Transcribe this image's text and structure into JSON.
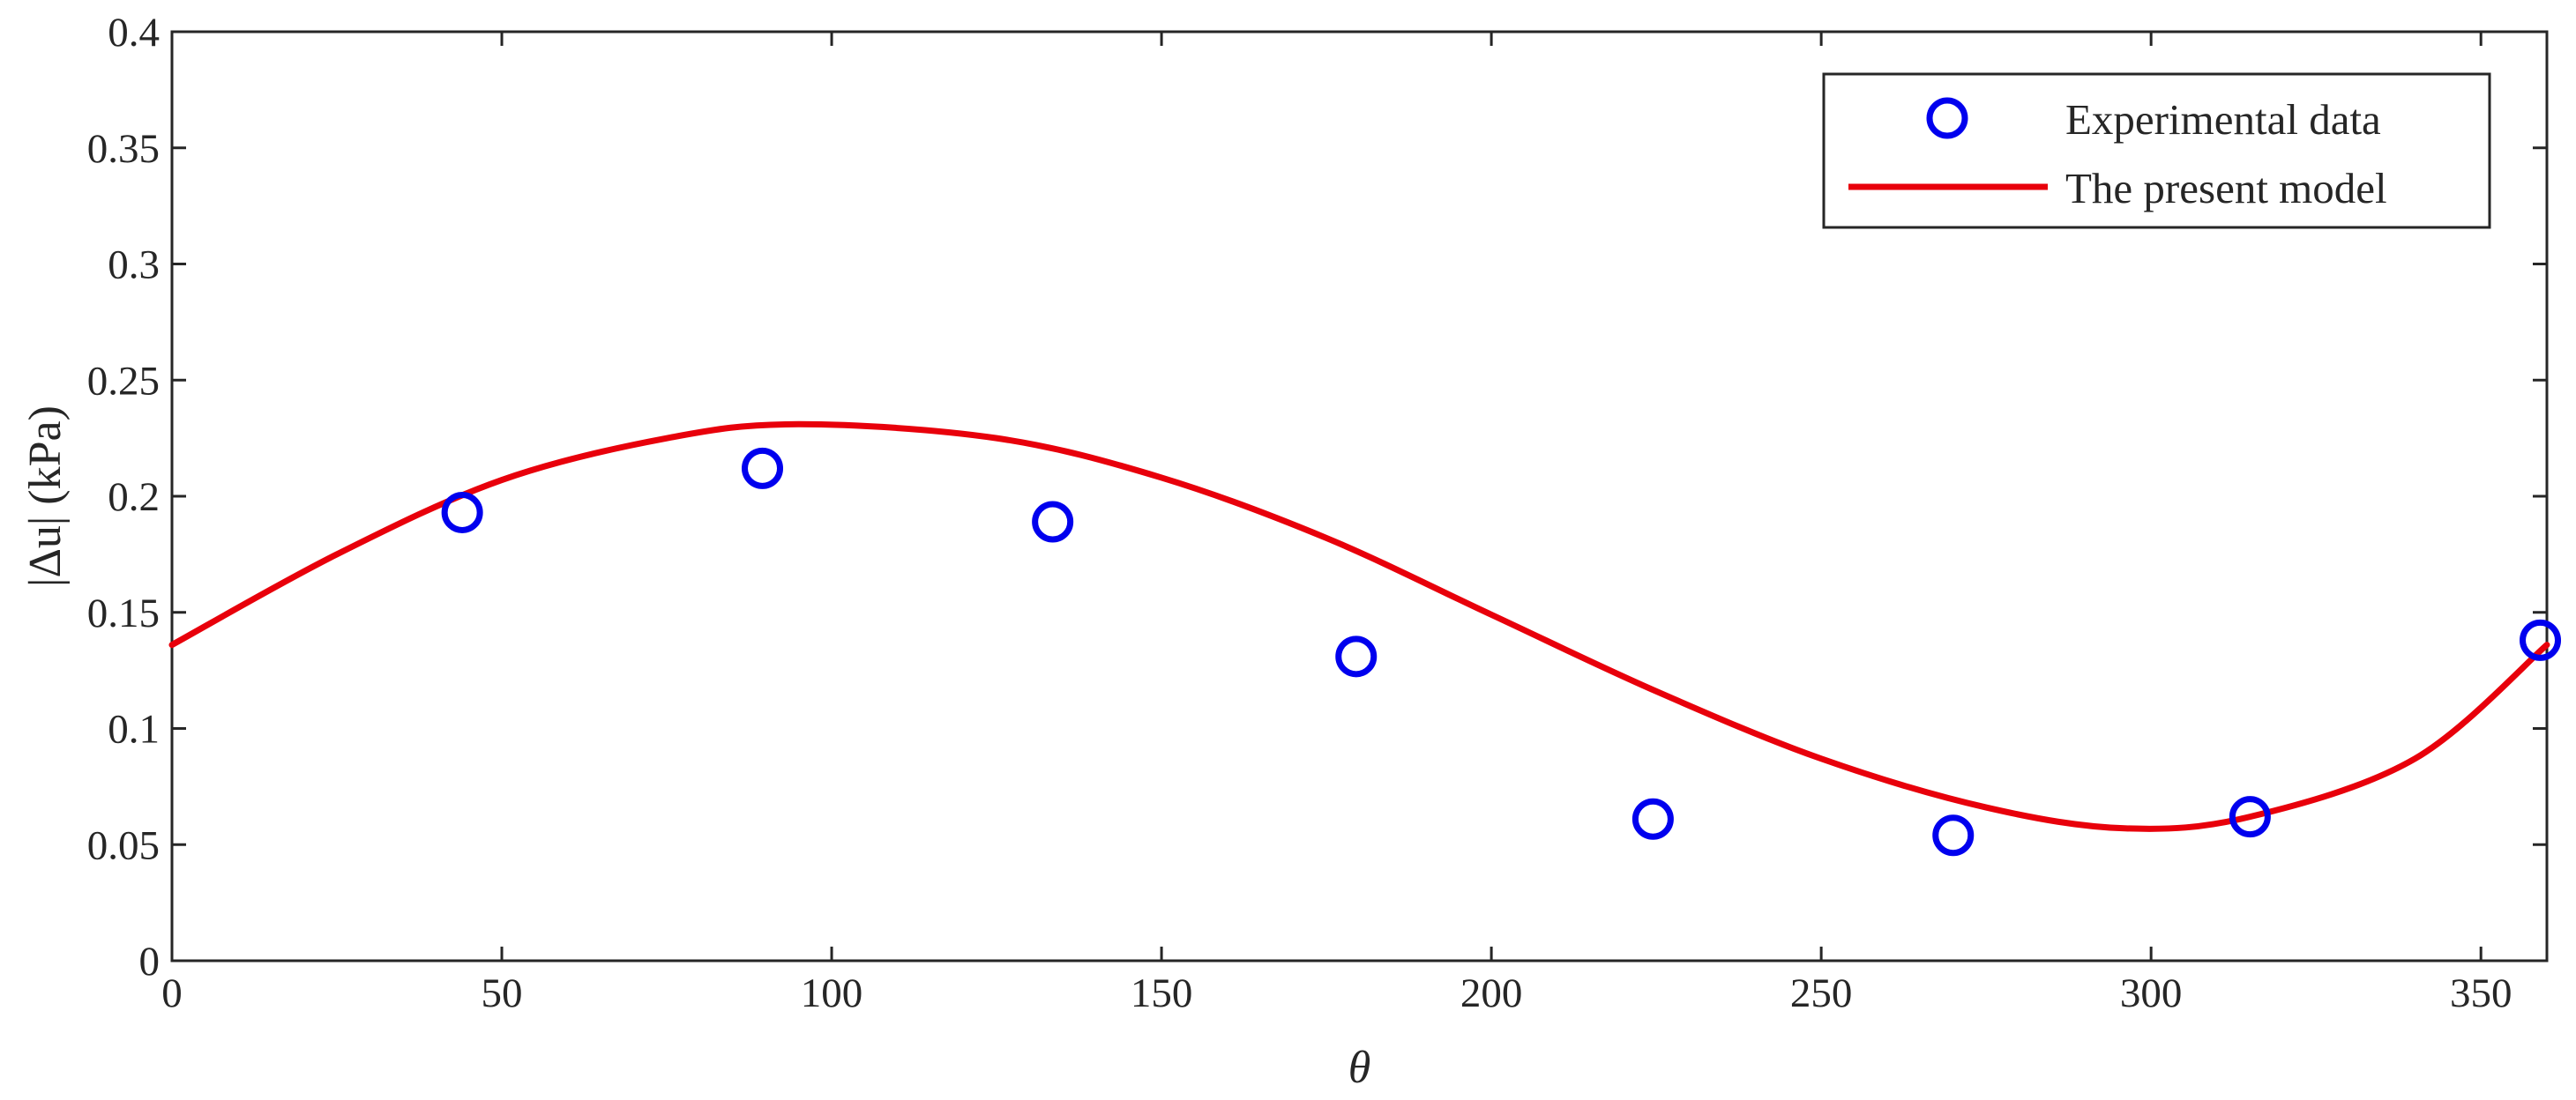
{
  "chart_data": {
    "type": "scatter",
    "title": "",
    "xlabel": "θ",
    "ylabel": "|Δu| (kPa)",
    "xlim": [
      0,
      360
    ],
    "ylim": [
      0,
      0.4
    ],
    "xticks": [
      0,
      50,
      100,
      150,
      200,
      250,
      300,
      350
    ],
    "yticks": [
      0,
      0.05,
      0.1,
      0.15,
      0.2,
      0.25,
      0.3,
      0.35,
      0.4
    ],
    "xtick_labels": [
      "0",
      "50",
      "100",
      "150",
      "200",
      "250",
      "300",
      "350"
    ],
    "ytick_labels": [
      "0",
      "0.05",
      "0.1",
      "0.15",
      "0.2",
      "0.25",
      "0.3",
      "0.35",
      "0.4"
    ],
    "grid": false,
    "legend_position": "top-right",
    "series": [
      {
        "name": "Experimental data",
        "type": "scatter",
        "marker": "circle",
        "color": "#0000ee",
        "x": [
          44,
          89.5,
          133.5,
          179.5,
          224.5,
          270,
          315,
          359
        ],
        "y": [
          0.193,
          0.212,
          0.189,
          0.131,
          0.061,
          0.054,
          0.062,
          0.138
        ]
      },
      {
        "name": "The present model",
        "type": "line",
        "color": "#e8000b",
        "x": [
          0,
          25,
          50,
          75,
          95,
          125,
          150,
          175,
          200,
          225,
          250,
          275,
          296,
          315,
          340,
          360
        ],
        "y": [
          0.136,
          0.175,
          0.207,
          0.225,
          0.231,
          0.225,
          0.208,
          0.182,
          0.149,
          0.116,
          0.087,
          0.066,
          0.057,
          0.062,
          0.087,
          0.136
        ]
      }
    ]
  }
}
